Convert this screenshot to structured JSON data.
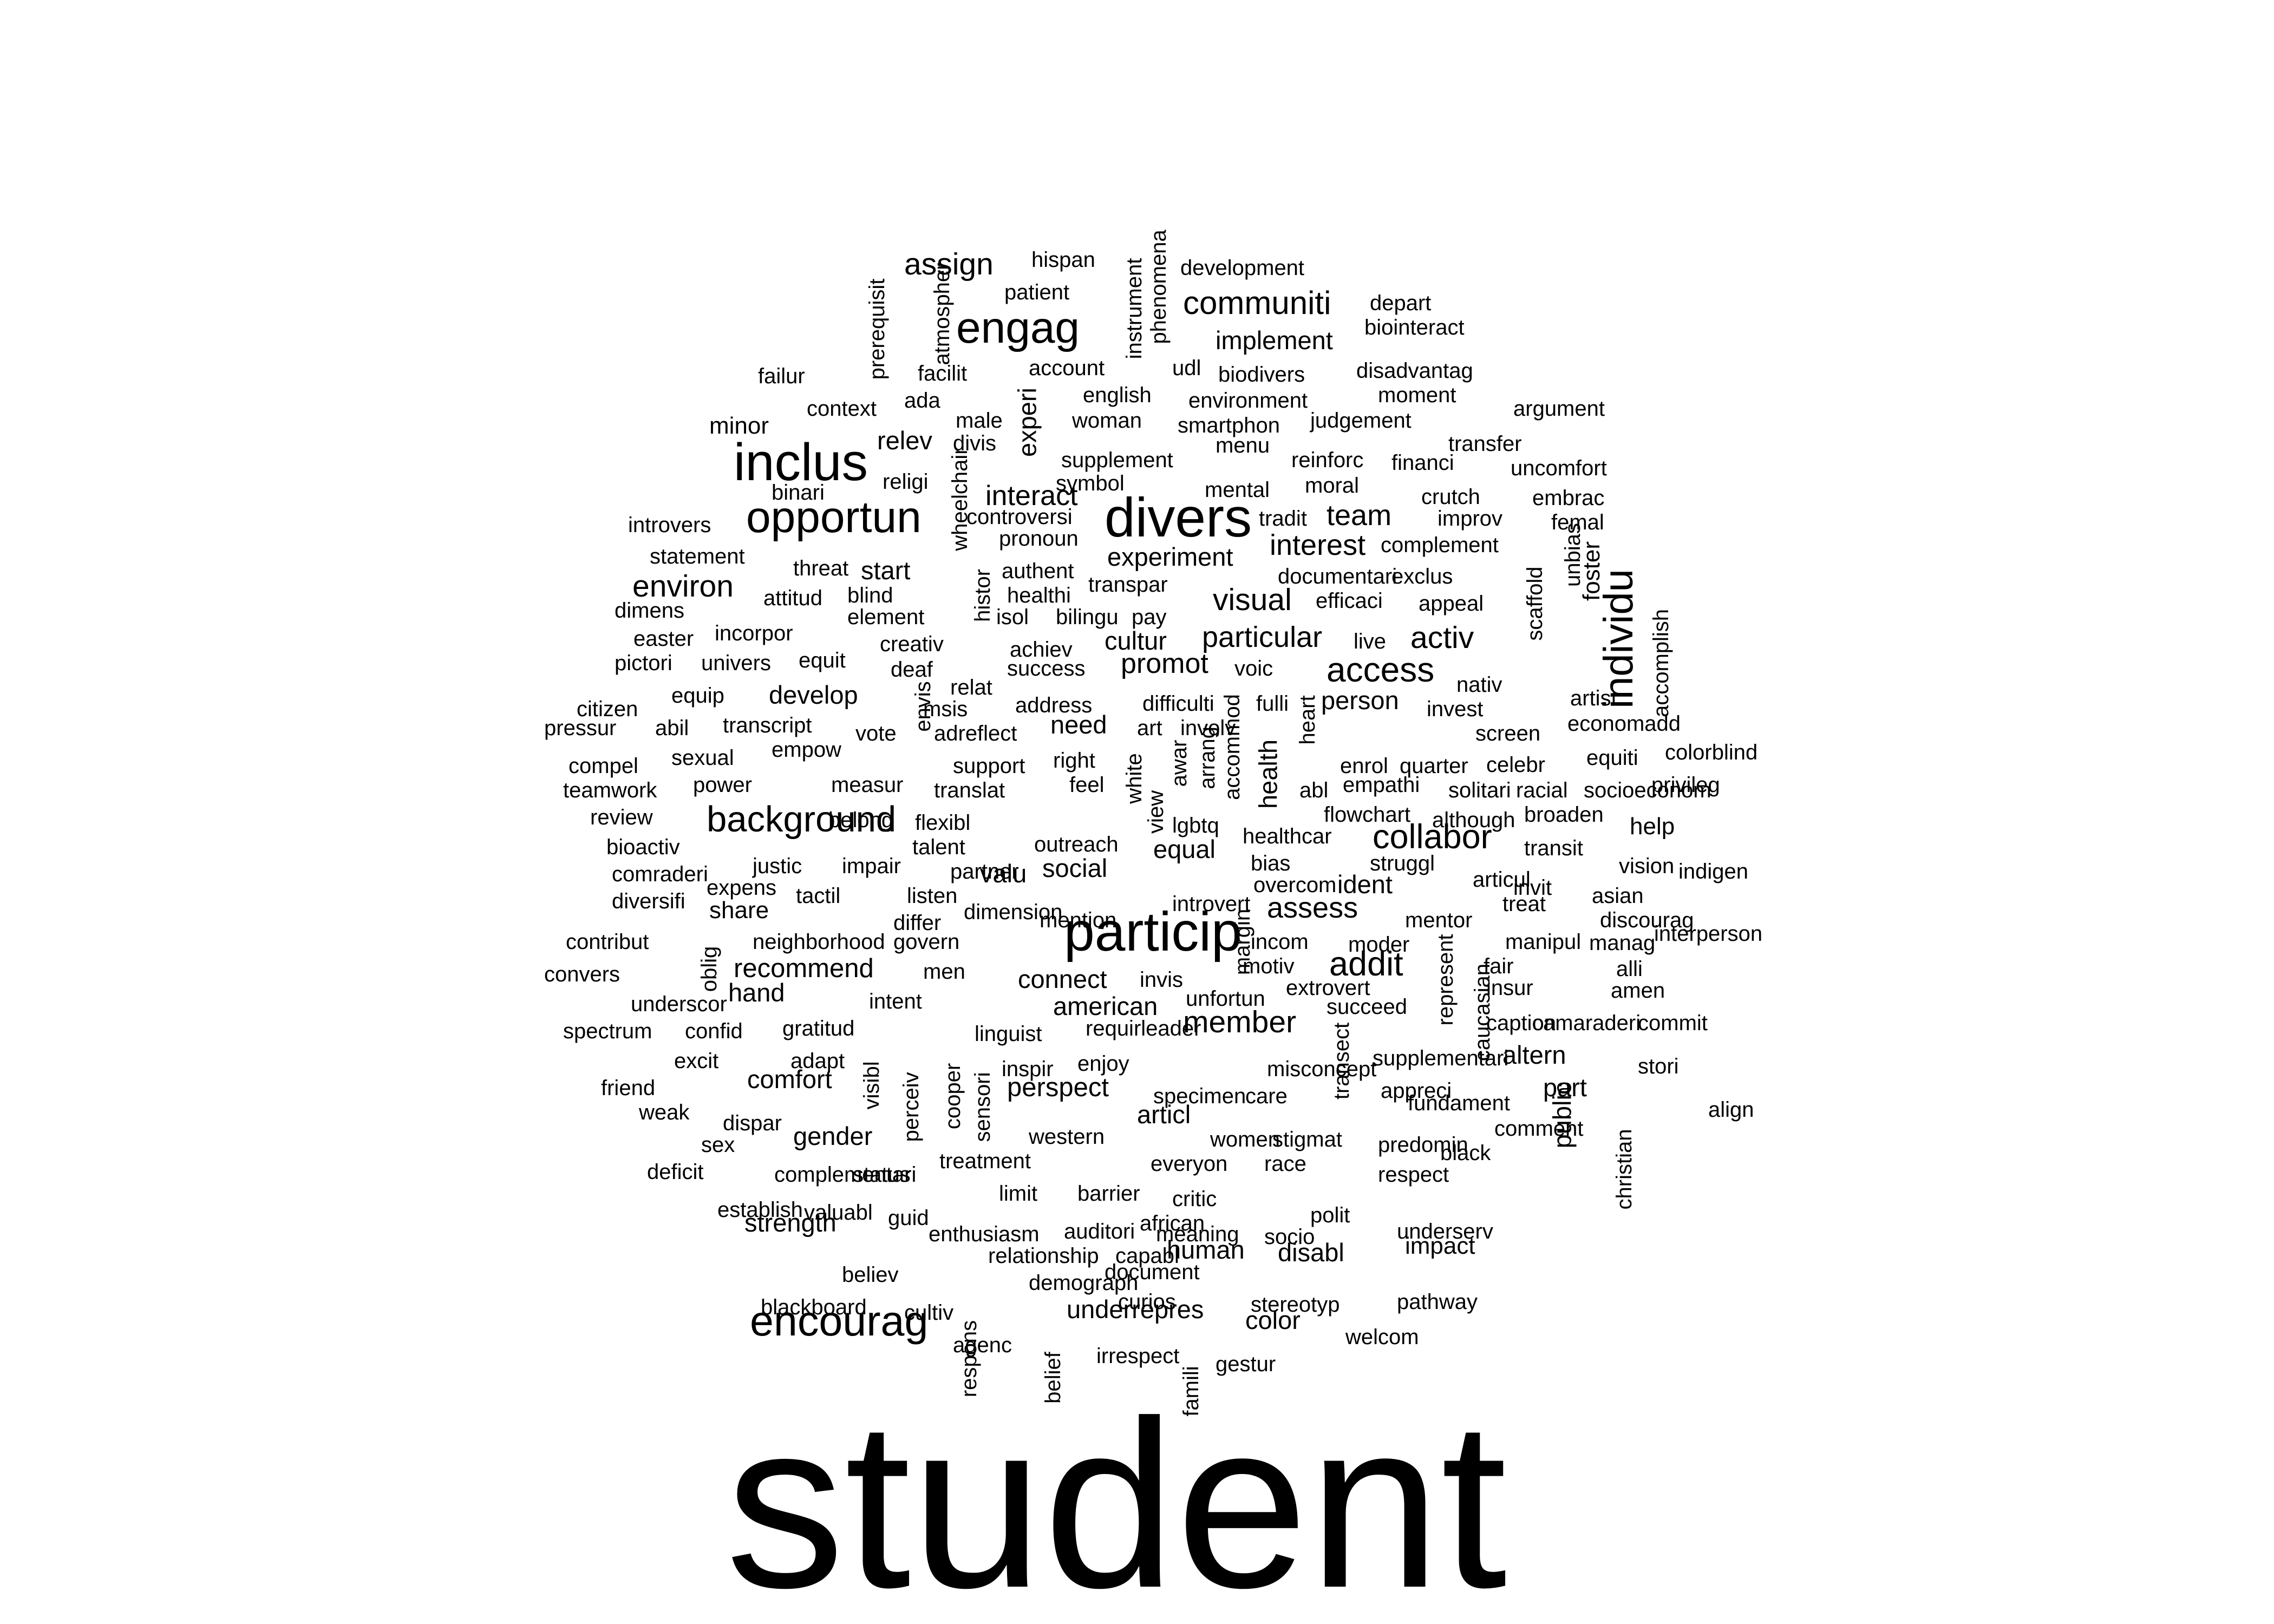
{
  "words": [
    {
      "text": "student",
      "size": 440
    },
    {
      "text": "divers",
      "size": 102
    },
    {
      "text": "particip",
      "size": 102
    },
    {
      "text": "inclus",
      "size": 97
    },
    {
      "text": "opportun",
      "size": 82
    },
    {
      "text": "engag",
      "size": 82
    },
    {
      "text": "encourag",
      "size": 79
    },
    {
      "text": "individu",
      "size": 76,
      "vertical": true
    },
    {
      "text": "background",
      "size": 67
    },
    {
      "text": "collabor",
      "size": 63
    },
    {
      "text": "access",
      "size": 64
    },
    {
      "text": "addit",
      "size": 63
    },
    {
      "text": "communiti",
      "size": 60
    },
    {
      "text": "assign",
      "size": 57
    },
    {
      "text": "environ",
      "size": 57
    },
    {
      "text": "visual",
      "size": 57
    },
    {
      "text": "activ",
      "size": 57
    },
    {
      "text": "member",
      "size": 57
    },
    {
      "text": "interest",
      "size": 54
    },
    {
      "text": "team",
      "size": 54
    },
    {
      "text": "particular",
      "size": 54
    },
    {
      "text": "assess",
      "size": 54
    },
    {
      "text": "promot",
      "size": 52
    },
    {
      "text": "interact",
      "size": 52
    },
    {
      "text": "recommend",
      "size": 49
    },
    {
      "text": "perspect",
      "size": 49
    },
    {
      "text": "implement",
      "size": 47
    },
    {
      "text": "experiment",
      "size": 47
    },
    {
      "text": "relev",
      "size": 47
    },
    {
      "text": "develop",
      "size": 47
    },
    {
      "text": "need",
      "size": 47
    },
    {
      "text": "person",
      "size": 47
    },
    {
      "text": "equal",
      "size": 47
    },
    {
      "text": "valu",
      "size": 47
    },
    {
      "text": "social",
      "size": 47
    },
    {
      "text": "ident",
      "size": 47
    },
    {
      "text": "connect",
      "size": 47
    },
    {
      "text": "american",
      "size": 47
    },
    {
      "text": "hand",
      "size": 47
    },
    {
      "text": "comfort",
      "size": 47
    },
    {
      "text": "gender",
      "size": 47
    },
    {
      "text": "strength",
      "size": 47
    },
    {
      "text": "underrepres",
      "size": 47
    },
    {
      "text": "human",
      "size": 47
    },
    {
      "text": "disabl",
      "size": 47
    },
    {
      "text": "color",
      "size": 47
    },
    {
      "text": "articl",
      "size": 47
    },
    {
      "text": "altern",
      "size": 47
    },
    {
      "text": "part",
      "size": 47
    },
    {
      "text": "start",
      "size": 47
    },
    {
      "text": "cultur",
      "size": 47
    },
    {
      "text": "health",
      "size": 47,
      "vertical": true
    },
    {
      "text": "public",
      "size": 47,
      "vertical": true
    },
    {
      "text": "experi",
      "size": 47,
      "vertical": true
    },
    {
      "text": "minor",
      "size": 44
    },
    {
      "text": "share",
      "size": 44
    },
    {
      "text": "help",
      "size": 44
    },
    {
      "text": "impact",
      "size": 44
    },
    {
      "text": "foster",
      "size": 44,
      "vertical": true
    },
    {
      "text": "hispan",
      "size": 40
    },
    {
      "text": "patient",
      "size": 40
    },
    {
      "text": "development",
      "size": 40
    },
    {
      "text": "depart",
      "size": 40
    },
    {
      "text": "biointeract",
      "size": 40
    },
    {
      "text": "failur",
      "size": 40
    },
    {
      "text": "facilit",
      "size": 40
    },
    {
      "text": "account",
      "size": 40
    },
    {
      "text": "udl",
      "size": 40
    },
    {
      "text": "biodivers",
      "size": 40
    },
    {
      "text": "disadvantag",
      "size": 40
    },
    {
      "text": "context",
      "size": 40
    },
    {
      "text": "ada",
      "size": 40
    },
    {
      "text": "english",
      "size": 40
    },
    {
      "text": "environment",
      "size": 40
    },
    {
      "text": "moment",
      "size": 40
    },
    {
      "text": "argument",
      "size": 40
    },
    {
      "text": "male",
      "size": 40
    },
    {
      "text": "woman",
      "size": 40
    },
    {
      "text": "smartphon",
      "size": 40
    },
    {
      "text": "judgement",
      "size": 40
    },
    {
      "text": "divis",
      "size": 40
    },
    {
      "text": "menu",
      "size": 40
    },
    {
      "text": "transfer",
      "size": 40
    },
    {
      "text": "supplement",
      "size": 40
    },
    {
      "text": "reinforc",
      "size": 40
    },
    {
      "text": "financi",
      "size": 40
    },
    {
      "text": "uncomfort",
      "size": 40
    },
    {
      "text": "religi",
      "size": 40
    },
    {
      "text": "symbol",
      "size": 40
    },
    {
      "text": "binari",
      "size": 40
    },
    {
      "text": "mental",
      "size": 40
    },
    {
      "text": "moral",
      "size": 40
    },
    {
      "text": "crutch",
      "size": 40
    },
    {
      "text": "embrac",
      "size": 40
    },
    {
      "text": "controversi",
      "size": 40
    },
    {
      "text": "tradit",
      "size": 40
    },
    {
      "text": "improv",
      "size": 40
    },
    {
      "text": "femal",
      "size": 40
    },
    {
      "text": "introvers",
      "size": 40
    },
    {
      "text": "pronoun",
      "size": 40
    },
    {
      "text": "complement",
      "size": 40
    },
    {
      "text": "statement",
      "size": 40
    },
    {
      "text": "threat",
      "size": 40
    },
    {
      "text": "authent",
      "size": 40
    },
    {
      "text": "documentari",
      "size": 40
    },
    {
      "text": "exclus",
      "size": 40
    },
    {
      "text": "attitud",
      "size": 40
    },
    {
      "text": "blind",
      "size": 40
    },
    {
      "text": "healthi",
      "size": 40
    },
    {
      "text": "transpar",
      "size": 40
    },
    {
      "text": "efficaci",
      "size": 40
    },
    {
      "text": "appeal",
      "size": 40
    },
    {
      "text": "dimens",
      "size": 40
    },
    {
      "text": "element",
      "size": 40
    },
    {
      "text": "isol",
      "size": 40
    },
    {
      "text": "bilingu",
      "size": 40
    },
    {
      "text": "pay",
      "size": 40
    },
    {
      "text": "easter",
      "size": 40
    },
    {
      "text": "incorpor",
      "size": 40
    },
    {
      "text": "creativ",
      "size": 40
    },
    {
      "text": "achiev",
      "size": 40
    },
    {
      "text": "live",
      "size": 40
    },
    {
      "text": "pictori",
      "size": 40
    },
    {
      "text": "univers",
      "size": 40
    },
    {
      "text": "equit",
      "size": 40
    },
    {
      "text": "deaf",
      "size": 40
    },
    {
      "text": "success",
      "size": 40
    },
    {
      "text": "voic",
      "size": 40
    },
    {
      "text": "nativ",
      "size": 40
    },
    {
      "text": "citizen",
      "size": 40
    },
    {
      "text": "equip",
      "size": 40
    },
    {
      "text": "relat",
      "size": 40
    },
    {
      "text": "msis",
      "size": 40
    },
    {
      "text": "address",
      "size": 40
    },
    {
      "text": "difficulti",
      "size": 40
    },
    {
      "text": "fulli",
      "size": 40
    },
    {
      "text": "invest",
      "size": 40
    },
    {
      "text": "artist",
      "size": 40
    },
    {
      "text": "pressur",
      "size": 40
    },
    {
      "text": "abil",
      "size": 40
    },
    {
      "text": "transcript",
      "size": 40
    },
    {
      "text": "vote",
      "size": 40
    },
    {
      "text": "adreflect",
      "size": 40
    },
    {
      "text": "art",
      "size": 40
    },
    {
      "text": "involv",
      "size": 40
    },
    {
      "text": "screen",
      "size": 40
    },
    {
      "text": "economadd",
      "size": 40
    },
    {
      "text": "compel",
      "size": 40
    },
    {
      "text": "sexual",
      "size": 40
    },
    {
      "text": "empow",
      "size": 40
    },
    {
      "text": "support",
      "size": 40
    },
    {
      "text": "right",
      "size": 40
    },
    {
      "text": "enrol",
      "size": 40
    },
    {
      "text": "quarter",
      "size": 40
    },
    {
      "text": "celebr",
      "size": 40
    },
    {
      "text": "equiti",
      "size": 40
    },
    {
      "text": "colorblind",
      "size": 40
    },
    {
      "text": "teamwork",
      "size": 40
    },
    {
      "text": "power",
      "size": 40
    },
    {
      "text": "measur",
      "size": 40
    },
    {
      "text": "translat",
      "size": 40
    },
    {
      "text": "feel",
      "size": 40
    },
    {
      "text": "abl",
      "size": 40
    },
    {
      "text": "empathi",
      "size": 40
    },
    {
      "text": "solitari",
      "size": 40
    },
    {
      "text": "racial",
      "size": 40
    },
    {
      "text": "socioeconom",
      "size": 40
    },
    {
      "text": "privileg",
      "size": 40
    },
    {
      "text": "review",
      "size": 40
    },
    {
      "text": "belong",
      "size": 40
    },
    {
      "text": "flexibl",
      "size": 40
    },
    {
      "text": "lgbtq",
      "size": 40
    },
    {
      "text": "flowchart",
      "size": 40
    },
    {
      "text": "although",
      "size": 40
    },
    {
      "text": "broaden",
      "size": 40
    },
    {
      "text": "bioactiv",
      "size": 40
    },
    {
      "text": "talent",
      "size": 40
    },
    {
      "text": "healthcar",
      "size": 40
    },
    {
      "text": "transit",
      "size": 40
    },
    {
      "text": "comraderi",
      "size": 40
    },
    {
      "text": "justic",
      "size": 40
    },
    {
      "text": "impair",
      "size": 40
    },
    {
      "text": "partner",
      "size": 40
    },
    {
      "text": "outreach",
      "size": 40
    },
    {
      "text": "bias",
      "size": 40
    },
    {
      "text": "vision",
      "size": 40
    },
    {
      "text": "indigen",
      "size": 40
    },
    {
      "text": "diversifi",
      "size": 40
    },
    {
      "text": "expens",
      "size": 40
    },
    {
      "text": "tactil",
      "size": 40
    },
    {
      "text": "listen",
      "size": 40
    },
    {
      "text": "overcom",
      "size": 40
    },
    {
      "text": "struggl",
      "size": 40
    },
    {
      "text": "invit",
      "size": 40
    },
    {
      "text": "articul",
      "size": 40
    },
    {
      "text": "asian",
      "size": 40
    },
    {
      "text": "differ",
      "size": 40
    },
    {
      "text": "dimension",
      "size": 40
    },
    {
      "text": "mention",
      "size": 40
    },
    {
      "text": "introvert",
      "size": 40
    },
    {
      "text": "mentor",
      "size": 40
    },
    {
      "text": "treat",
      "size": 40
    },
    {
      "text": "discourag",
      "size": 40
    },
    {
      "text": "contribut",
      "size": 40
    },
    {
      "text": "neighborhood",
      "size": 40
    },
    {
      "text": "govern",
      "size": 40
    },
    {
      "text": "incom",
      "size": 40
    },
    {
      "text": "moder",
      "size": 40
    },
    {
      "text": "manipul",
      "size": 40
    },
    {
      "text": "manag",
      "size": 40
    },
    {
      "text": "interperson",
      "size": 40
    },
    {
      "text": "convers",
      "size": 40
    },
    {
      "text": "men",
      "size": 40
    },
    {
      "text": "motiv",
      "size": 40
    },
    {
      "text": "fair",
      "size": 40
    },
    {
      "text": "alli",
      "size": 40
    },
    {
      "text": "invis",
      "size": 40
    },
    {
      "text": "extrovert",
      "size": 40
    },
    {
      "text": "insur",
      "size": 40
    },
    {
      "text": "amen",
      "size": 40
    },
    {
      "text": "underscor",
      "size": 40
    },
    {
      "text": "intent",
      "size": 40
    },
    {
      "text": "unfortun",
      "size": 40
    },
    {
      "text": "succeed",
      "size": 40
    },
    {
      "text": "spectrum",
      "size": 40
    },
    {
      "text": "confid",
      "size": 40
    },
    {
      "text": "gratitud",
      "size": 40
    },
    {
      "text": "linguist",
      "size": 40
    },
    {
      "text": "requirleader",
      "size": 40
    },
    {
      "text": "caption",
      "size": 40
    },
    {
      "text": "camaraderi",
      "size": 40
    },
    {
      "text": "commit",
      "size": 40
    },
    {
      "text": "excit",
      "size": 40
    },
    {
      "text": "adapt",
      "size": 40
    },
    {
      "text": "supplementari",
      "size": 40
    },
    {
      "text": "inspir",
      "size": 40
    },
    {
      "text": "enjoy",
      "size": 40
    },
    {
      "text": "misconcept",
      "size": 40
    },
    {
      "text": "stori",
      "size": 40
    },
    {
      "text": "friend",
      "size": 40
    },
    {
      "text": "appreci",
      "size": 40
    },
    {
      "text": "weak",
      "size": 40
    },
    {
      "text": "specimen",
      "size": 40
    },
    {
      "text": "care",
      "size": 40
    },
    {
      "text": "fundament",
      "size": 40
    },
    {
      "text": "align",
      "size": 40
    },
    {
      "text": "dispar",
      "size": 40
    },
    {
      "text": "comment",
      "size": 40
    },
    {
      "text": "sex",
      "size": 40
    },
    {
      "text": "western",
      "size": 40
    },
    {
      "text": "women",
      "size": 40
    },
    {
      "text": "stigmat",
      "size": 40
    },
    {
      "text": "predomin",
      "size": 40
    },
    {
      "text": "black",
      "size": 40
    },
    {
      "text": "deficit",
      "size": 40
    },
    {
      "text": "complementari",
      "size": 40
    },
    {
      "text": "status",
      "size": 40
    },
    {
      "text": "treatment",
      "size": 40
    },
    {
      "text": "everyon",
      "size": 40
    },
    {
      "text": "race",
      "size": 40
    },
    {
      "text": "respect",
      "size": 40
    },
    {
      "text": "limit",
      "size": 40
    },
    {
      "text": "barrier",
      "size": 40
    },
    {
      "text": "critic",
      "size": 40
    },
    {
      "text": "establish",
      "size": 40
    },
    {
      "text": "valuabl",
      "size": 40
    },
    {
      "text": "guid",
      "size": 40
    },
    {
      "text": "african",
      "size": 40
    },
    {
      "text": "polit",
      "size": 40
    },
    {
      "text": "underserv",
      "size": 40
    },
    {
      "text": "enthusiasm",
      "size": 40
    },
    {
      "text": "auditori",
      "size": 40
    },
    {
      "text": "meaning",
      "size": 40
    },
    {
      "text": "socio",
      "size": 40
    },
    {
      "text": "relationship",
      "size": 40
    },
    {
      "text": "capabl",
      "size": 40
    },
    {
      "text": "believ",
      "size": 40
    },
    {
      "text": "demograph",
      "size": 40
    },
    {
      "text": "document",
      "size": 40
    },
    {
      "text": "blackboard",
      "size": 40
    },
    {
      "text": "cultiv",
      "size": 40
    },
    {
      "text": "curios",
      "size": 40
    },
    {
      "text": "stereotyp",
      "size": 40
    },
    {
      "text": "pathway",
      "size": 40
    },
    {
      "text": "welcom",
      "size": 40
    },
    {
      "text": "agenc",
      "size": 40
    },
    {
      "text": "irrespect",
      "size": 40
    },
    {
      "text": "gestur",
      "size": 40
    },
    {
      "text": "respons",
      "size": 40,
      "vertical": true
    },
    {
      "text": "belief",
      "size": 40,
      "vertical": true
    },
    {
      "text": "famili",
      "size": 40,
      "vertical": true
    },
    {
      "text": "prerequisit",
      "size": 40,
      "vertical": true
    },
    {
      "text": "atmospher",
      "size": 40,
      "vertical": true
    },
    {
      "text": "instrument",
      "size": 40,
      "vertical": true
    },
    {
      "text": "phenomena",
      "size": 40,
      "vertical": true
    },
    {
      "text": "wheelchair",
      "size": 40,
      "vertical": true
    },
    {
      "text": "histor",
      "size": 40,
      "vertical": true
    },
    {
      "text": "unbias",
      "size": 40,
      "vertical": true
    },
    {
      "text": "scaffold",
      "size": 40,
      "vertical": true
    },
    {
      "text": "accomplish",
      "size": 40,
      "vertical": true
    },
    {
      "text": "envis",
      "size": 40,
      "vertical": true
    },
    {
      "text": "heart",
      "size": 40,
      "vertical": true
    },
    {
      "text": "view",
      "size": 40,
      "vertical": true
    },
    {
      "text": "white",
      "size": 40,
      "vertical": true
    },
    {
      "text": "awar",
      "size": 40,
      "vertical": true
    },
    {
      "text": "arrang",
      "size": 40,
      "vertical": true
    },
    {
      "text": "accommod",
      "size": 40,
      "vertical": true
    },
    {
      "text": "margin",
      "size": 40,
      "vertical": true
    },
    {
      "text": "oblig",
      "size": 40,
      "vertical": true
    },
    {
      "text": "represent",
      "size": 40,
      "vertical": true
    },
    {
      "text": "caucasian",
      "size": 40,
      "vertical": true
    },
    {
      "text": "visibl",
      "size": 40,
      "vertical": true
    },
    {
      "text": "perceiv",
      "size": 40,
      "vertical": true
    },
    {
      "text": "cooper",
      "size": 40,
      "vertical": true
    },
    {
      "text": "sensori",
      "size": 40,
      "vertical": true
    },
    {
      "text": "transect",
      "size": 40,
      "vertical": true
    },
    {
      "text": "christian",
      "size": 40,
      "vertical": true
    }
  ]
}
